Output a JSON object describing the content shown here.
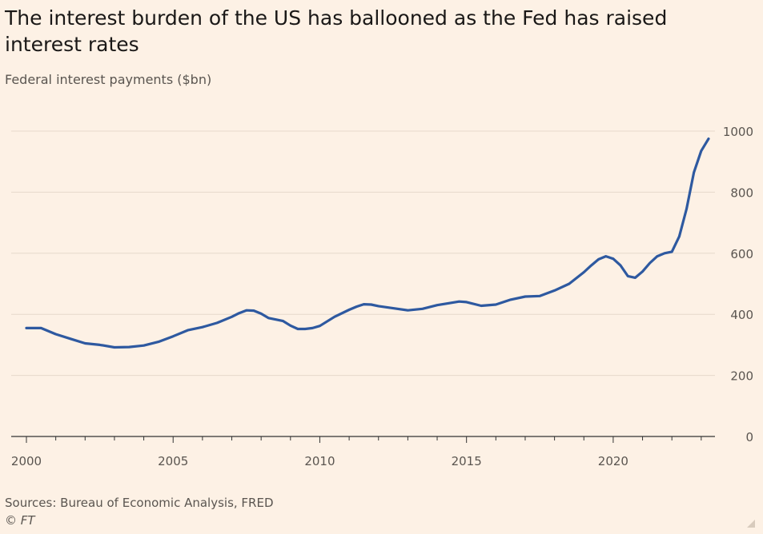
{
  "title": "The interest burden of the US has ballooned as the Fed has raised interest rates",
  "subtitle": "Federal interest payments ($bn)",
  "source": "Sources: Bureau of Economic Analysis, FRED",
  "credit": "© FT",
  "colors": {
    "background": "#fdf1e5",
    "line": "#2e59a0",
    "grid": "#e6d9cb",
    "axis": "#333333",
    "text": "#5a5550"
  },
  "chart_data": {
    "type": "line",
    "title": "The interest burden of the US has ballooned as the Fed has raised interest rates",
    "subtitle": "Federal interest payments ($bn)",
    "xlabel": "",
    "ylabel": "",
    "xlim": [
      2000,
      2023.25
    ],
    "ylim": [
      0,
      1000
    ],
    "grid": true,
    "y_axis_position": "right",
    "x_ticks": [
      2000,
      2005,
      2010,
      2015,
      2020
    ],
    "x_tick_labels": [
      "2000",
      "2005",
      "2010",
      "2015",
      "2020"
    ],
    "y_ticks": [
      0,
      200,
      400,
      600,
      800,
      1000
    ],
    "y_tick_labels": [
      "0",
      "200",
      "400",
      "600",
      "800",
      "1000"
    ],
    "series": [
      {
        "name": "",
        "x": [
          2000.0,
          2000.5,
          2001.0,
          2001.5,
          2002.0,
          2002.5,
          2003.0,
          2003.5,
          2004.0,
          2004.5,
          2005.0,
          2005.5,
          2006.0,
          2006.5,
          2007.0,
          2007.25,
          2007.5,
          2007.75,
          2008.0,
          2008.25,
          2008.5,
          2008.75,
          2009.0,
          2009.25,
          2009.5,
          2009.75,
          2010.0,
          2010.5,
          2011.0,
          2011.25,
          2011.5,
          2011.75,
          2012.0,
          2012.5,
          2013.0,
          2013.5,
          2014.0,
          2014.5,
          2014.75,
          2015.0,
          2015.5,
          2016.0,
          2016.5,
          2017.0,
          2017.5,
          2018.0,
          2018.5,
          2019.0,
          2019.25,
          2019.5,
          2019.75,
          2020.0,
          2020.25,
          2020.5,
          2020.75,
          2021.0,
          2021.25,
          2021.5,
          2021.75,
          2022.0,
          2022.25,
          2022.5,
          2022.75,
          2023.0,
          2023.25
        ],
        "values": [
          355,
          355,
          335,
          320,
          305,
          300,
          292,
          293,
          298,
          310,
          328,
          348,
          358,
          372,
          392,
          404,
          413,
          412,
          402,
          388,
          383,
          378,
          363,
          352,
          352,
          355,
          362,
          392,
          415,
          425,
          433,
          432,
          427,
          420,
          413,
          418,
          430,
          438,
          442,
          440,
          428,
          432,
          448,
          458,
          460,
          478,
          500,
          538,
          560,
          580,
          590,
          582,
          560,
          525,
          520,
          540,
          568,
          590,
          600,
          605,
          655,
          745,
          865,
          935,
          975
        ]
      }
    ]
  }
}
